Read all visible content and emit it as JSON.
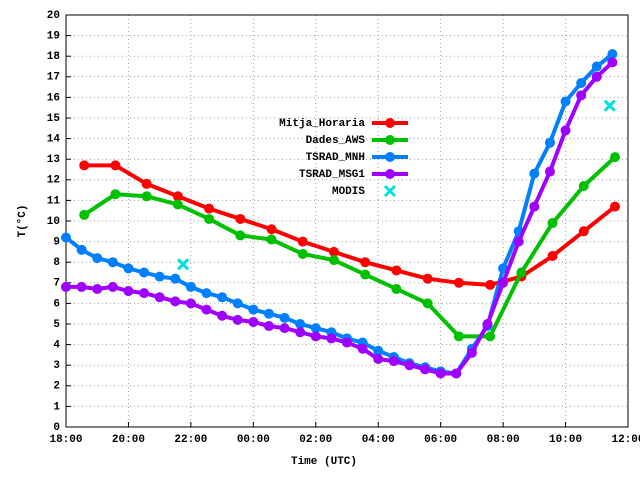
{
  "chart_data": {
    "type": "line",
    "x_label": "Time (UTC)",
    "y_label": "T(°C)",
    "xlim": [
      "18:00",
      "12:00"
    ],
    "xticks": [
      "18:00",
      "20:00",
      "22:00",
      "00:00",
      "02:00",
      "04:00",
      "06:00",
      "08:00",
      "10:00",
      "12:00"
    ],
    "ylim": [
      0,
      20
    ],
    "yticks": [
      0,
      1,
      2,
      3,
      4,
      5,
      6,
      7,
      8,
      9,
      10,
      11,
      12,
      13,
      14,
      15,
      16,
      17,
      18,
      19,
      20
    ],
    "grid": true,
    "legend": "top-center",
    "series": [
      {
        "name": "Mitja_Horaria",
        "color": "#ff0000",
        "marker": "circle",
        "x": [
          "18:35",
          "19:35",
          "20:35",
          "21:35",
          "22:35",
          "23:35",
          "00:35",
          "01:35",
          "02:35",
          "03:35",
          "04:35",
          "05:35",
          "06:35",
          "07:35",
          "08:35",
          "09:35",
          "10:35",
          "11:35"
        ],
        "values": [
          12.7,
          12.7,
          11.8,
          11.2,
          10.6,
          10.1,
          9.6,
          9.0,
          8.5,
          8.0,
          7.6,
          7.2,
          7.0,
          6.9,
          7.3,
          8.3,
          9.5,
          10.7
        ]
      },
      {
        "name": "Dades_AWS",
        "color": "#00c000",
        "marker": "circle",
        "x": [
          "18:35",
          "19:35",
          "20:35",
          "21:35",
          "22:35",
          "23:35",
          "00:35",
          "01:35",
          "02:35",
          "03:35",
          "04:35",
          "05:35",
          "06:35",
          "07:35",
          "08:35",
          "09:35",
          "10:35",
          "11:35"
        ],
        "values": [
          10.3,
          11.3,
          11.2,
          10.8,
          10.1,
          9.3,
          9.1,
          8.4,
          8.1,
          7.4,
          6.7,
          6.0,
          4.4,
          4.4,
          7.5,
          9.9,
          11.7,
          13.1
        ]
      },
      {
        "name": "TSRAD_MNH",
        "color": "#0080ff",
        "marker": "circle",
        "x": [
          "18:00",
          "18:30",
          "19:00",
          "19:30",
          "20:00",
          "20:30",
          "21:00",
          "21:30",
          "22:00",
          "22:30",
          "23:00",
          "23:30",
          "00:00",
          "00:30",
          "01:00",
          "01:30",
          "02:00",
          "02:30",
          "03:00",
          "03:30",
          "04:00",
          "04:30",
          "05:00",
          "05:30",
          "06:00",
          "06:30",
          "07:00",
          "07:30",
          "08:00",
          "08:30",
          "09:00",
          "09:30",
          "10:00",
          "10:30",
          "11:00",
          "11:30"
        ],
        "values": [
          9.2,
          8.6,
          8.2,
          8.0,
          7.7,
          7.5,
          7.3,
          7.2,
          6.8,
          6.5,
          6.3,
          6.0,
          5.7,
          5.5,
          5.3,
          5.0,
          4.8,
          4.6,
          4.3,
          4.1,
          3.7,
          3.4,
          3.1,
          2.9,
          2.7,
          2.6,
          3.8,
          4.9,
          7.7,
          9.5,
          12.3,
          13.8,
          15.8,
          16.7,
          17.5,
          18.1
        ]
      },
      {
        "name": "TSRAD_MSG1",
        "color": "#a000ff",
        "marker": "circle",
        "x": [
          "18:00",
          "18:30",
          "19:00",
          "19:30",
          "20:00",
          "20:30",
          "21:00",
          "21:30",
          "22:00",
          "22:30",
          "23:00",
          "23:30",
          "00:00",
          "00:30",
          "01:00",
          "01:30",
          "02:00",
          "02:30",
          "03:00",
          "03:30",
          "04:00",
          "04:30",
          "05:00",
          "05:30",
          "06:00",
          "06:30",
          "07:00",
          "07:30",
          "08:00",
          "08:30",
          "09:00",
          "09:30",
          "10:00",
          "10:30",
          "11:00",
          "11:30"
        ],
        "values": [
          6.8,
          6.8,
          6.7,
          6.8,
          6.6,
          6.5,
          6.3,
          6.1,
          6.0,
          5.7,
          5.4,
          5.2,
          5.1,
          4.9,
          4.8,
          4.6,
          4.4,
          4.3,
          4.1,
          3.8,
          3.3,
          3.2,
          3.0,
          2.8,
          2.6,
          2.6,
          3.6,
          5.0,
          7.0,
          9.0,
          10.7,
          12.4,
          14.4,
          16.1,
          17.0,
          17.7
        ]
      },
      {
        "name": "MODIS",
        "color": "#00e0e0",
        "marker": "cross",
        "line": false,
        "x": [
          "21:45",
          "11:25"
        ],
        "values": [
          7.9,
          15.6
        ]
      }
    ]
  }
}
